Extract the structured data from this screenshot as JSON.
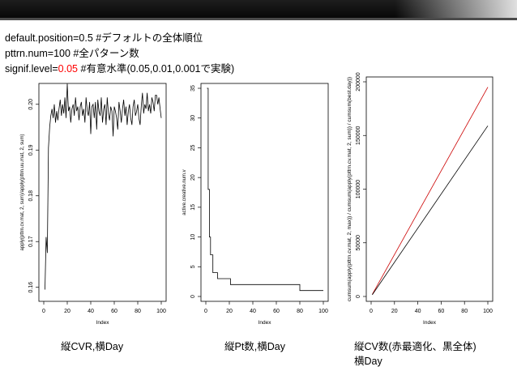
{
  "code_lines": [
    {
      "prefix": "default.position=0.5   #デフォルトの全体順位"
    },
    {
      "prefix": "pttrn.num=100     #全パターン数"
    },
    {
      "prefix": "signif.level=",
      "value": "0.05",
      "suffix": " #有意水準(0.05,0.01,0.001で実験)"
    }
  ],
  "colors": {
    "value_highlight": "#ff0000",
    "cv_best": "#cc0000",
    "cv_all": "#000000"
  },
  "captions": {
    "cvr": "縦CVR,横Day",
    "pt": "縦Pt数,横Day",
    "cv_line1": "縦CV数(赤最適化、黒全体)",
    "cv_line2": "横Day"
  },
  "chart_data": [
    {
      "type": "line",
      "xlabel": "Index",
      "ylabel": "apply(pttrn.cv.mat, 2, sum)/apply(pttrn.uu.mat, 2, sum)",
      "xlim": [
        0,
        100
      ],
      "ylim": [
        0.158,
        0.2035
      ],
      "xticks": [
        "0",
        "20",
        "40",
        "60",
        "80",
        "100"
      ],
      "yticks": [
        "0.16",
        "0.17",
        "0.18",
        "0.19",
        "0.20"
      ],
      "yticks_values": [
        0.16,
        0.17,
        0.18,
        0.19,
        0.2
      ],
      "x": [
        1,
        2,
        3,
        4,
        5,
        6,
        7,
        8,
        9,
        10,
        11,
        12,
        13,
        14,
        15,
        16,
        17,
        18,
        19,
        20,
        21,
        22,
        23,
        24,
        25,
        26,
        27,
        28,
        29,
        30,
        31,
        32,
        33,
        34,
        35,
        36,
        37,
        38,
        39,
        40,
        41,
        42,
        43,
        44,
        45,
        46,
        47,
        48,
        49,
        50,
        51,
        52,
        53,
        54,
        55,
        56,
        57,
        58,
        59,
        60,
        61,
        62,
        63,
        64,
        65,
        66,
        67,
        68,
        69,
        70,
        71,
        72,
        73,
        74,
        75,
        76,
        77,
        78,
        79,
        80,
        81,
        82,
        83,
        84,
        85,
        86,
        87,
        88,
        89,
        90,
        91,
        92,
        93,
        94,
        95,
        96,
        97,
        98,
        99,
        100
      ],
      "y": [
        0.1595,
        0.171,
        0.1675,
        0.1905,
        0.195,
        0.1975,
        0.199,
        0.197,
        0.2,
        0.196,
        0.1985,
        0.1965,
        0.199,
        0.201,
        0.1975,
        0.2,
        0.198,
        0.2015,
        0.197,
        0.2045,
        0.1985,
        0.1995,
        0.196,
        0.199,
        0.2,
        0.1975,
        0.2015,
        0.1985,
        0.1995,
        0.1965,
        0.1995,
        0.2005,
        0.1975,
        0.199,
        0.196,
        0.2015,
        0.1985,
        0.1975,
        0.2005,
        0.1935,
        0.1995,
        0.2,
        0.197,
        0.2005,
        0.1945,
        0.201,
        0.1985,
        0.1975,
        0.2015,
        0.196,
        0.199,
        0.2,
        0.1955,
        0.2015,
        0.198,
        0.1965,
        0.1995,
        0.1985,
        0.193,
        0.1995,
        0.1985,
        0.197,
        0.1945,
        0.2005,
        0.1985,
        0.196,
        0.199,
        0.201,
        0.1975,
        0.1995,
        0.1955,
        0.1985,
        0.2,
        0.197,
        0.1955,
        0.1995,
        0.201,
        0.1975,
        0.1985,
        0.2,
        0.197,
        0.1955,
        0.1995,
        0.2025,
        0.198,
        0.2,
        0.199,
        0.2025,
        0.1985,
        0.2,
        0.198,
        0.2015,
        0.2005,
        0.1985,
        0.202,
        0.202,
        0.2,
        0.2015,
        0.199,
        0.197
      ]
    },
    {
      "type": "line",
      "xlabel": "Index",
      "ylabel": "active.creative.num.v",
      "xlim": [
        0,
        100
      ],
      "ylim": [
        0,
        35
      ],
      "xticks": [
        "0",
        "20",
        "40",
        "60",
        "80",
        "100"
      ],
      "yticks": [
        "0",
        "5",
        "10",
        "15",
        "20",
        "25",
        "30",
        "35"
      ],
      "yticks_values": [
        0,
        5,
        10,
        15,
        20,
        25,
        30,
        35
      ],
      "steps": [
        [
          1,
          35
        ],
        [
          2,
          18
        ],
        [
          3,
          10
        ],
        [
          4,
          7
        ],
        [
          6,
          4
        ],
        [
          10,
          3
        ],
        [
          21,
          2
        ],
        [
          80,
          1
        ],
        [
          100,
          1
        ]
      ]
    },
    {
      "type": "line",
      "xlabel": "Index",
      "ylabel": "cumsum(apply(pttrn.cv.mat, 2, max)) / cumsum(apply(pttrn.cv.mat, 2, sum)) / cumsum(best.day))",
      "xlim": [
        0,
        100
      ],
      "ylim": [
        0,
        200000
      ],
      "xticks": [
        "0",
        "20",
        "40",
        "60",
        "80",
        "100"
      ],
      "yticks": [
        "0",
        "50000",
        "100000",
        "150000",
        "200000"
      ],
      "yticks_values": [
        0,
        50000,
        100000,
        150000,
        200000
      ],
      "series": [
        {
          "color": "#cc0000",
          "x": [
            1,
            100
          ],
          "y": [
            2000,
            195000
          ]
        },
        {
          "color": "#000000",
          "x": [
            1,
            100
          ],
          "y": [
            1600,
            159000
          ]
        }
      ]
    }
  ]
}
